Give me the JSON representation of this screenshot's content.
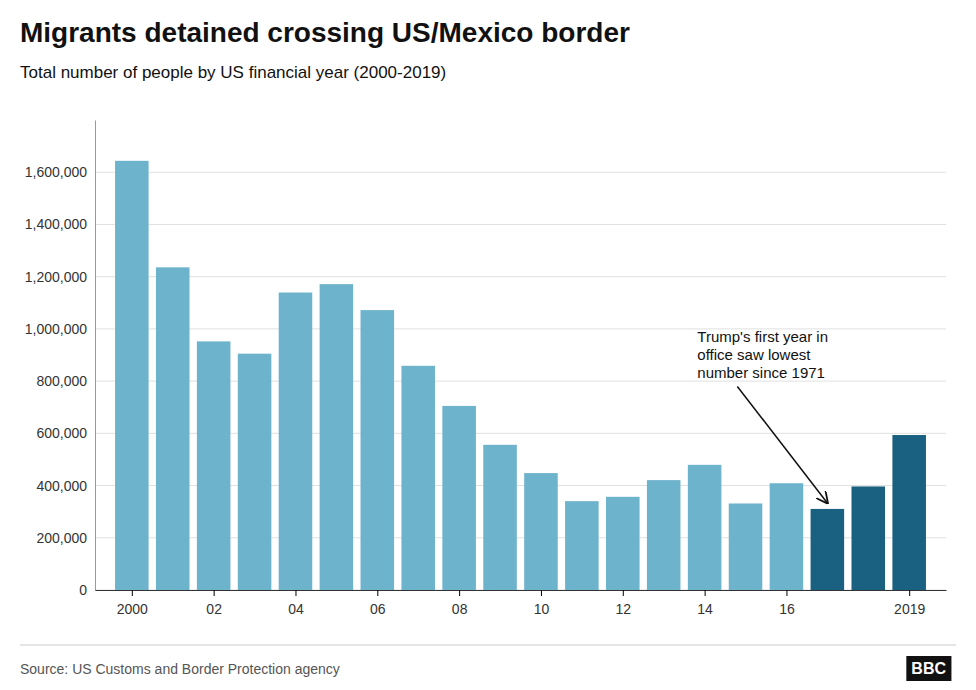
{
  "chart_data": {
    "type": "bar",
    "title": "Migrants detained crossing US/Mexico border",
    "subtitle": "Total number of people by US financial year (2000-2019)",
    "source": "Source: US Customs and Border Protection agency",
    "logo": "BBC",
    "x": [
      2000,
      2001,
      2002,
      2003,
      2004,
      2005,
      2006,
      2007,
      2008,
      2009,
      2010,
      2011,
      2012,
      2013,
      2014,
      2015,
      2016,
      2017,
      2018,
      2019
    ],
    "values": [
      1643679,
      1235718,
      952061,
      905065,
      1139282,
      1171396,
      1071972,
      858638,
      705005,
      556041,
      447731,
      340252,
      356873,
      420789,
      479371,
      331333,
      408870,
      310531,
      396579,
      593507
    ],
    "colors": [
      "#6db3cc",
      "#6db3cc",
      "#6db3cc",
      "#6db3cc",
      "#6db3cc",
      "#6db3cc",
      "#6db3cc",
      "#6db3cc",
      "#6db3cc",
      "#6db3cc",
      "#6db3cc",
      "#6db3cc",
      "#6db3cc",
      "#6db3cc",
      "#6db3cc",
      "#6db3cc",
      "#6db3cc",
      "#1a6080",
      "#1a6080",
      "#1a6080"
    ],
    "xlim": [
      1999.1,
      2019.9
    ],
    "xticks": [
      2000,
      {
        "value": 2002,
        "label": "02"
      },
      {
        "value": 2004,
        "label": "04"
      },
      {
        "value": 2006,
        "label": "06"
      },
      {
        "value": 2008,
        "label": "08"
      },
      {
        "value": 2010,
        "label": "10"
      },
      {
        "value": 2012,
        "label": "12"
      },
      {
        "value": 2014,
        "label": "14"
      },
      {
        "value": 2016,
        "label": "16"
      },
      2019
    ],
    "ylim": [
      0,
      1800000
    ],
    "yticks": [
      0,
      {
        "value": 200000,
        "label": "200,000"
      },
      {
        "value": 400000,
        "label": "400,000"
      },
      {
        "value": 600000,
        "label": "600,000"
      },
      {
        "value": 800000,
        "label": "800,000"
      },
      {
        "value": 1000000,
        "label": "1,000,000"
      },
      {
        "value": 1200000,
        "label": "1,200,000"
      },
      {
        "value": 1400000,
        "label": "1,400,000"
      },
      {
        "value": 1600000,
        "label": "1,600,000"
      }
    ],
    "grid": true,
    "annotations": [
      {
        "text": "Trump's first year in\noffice saw lowest\nnumber since 1971",
        "x": 2017,
        "y": 310531
      }
    ]
  }
}
